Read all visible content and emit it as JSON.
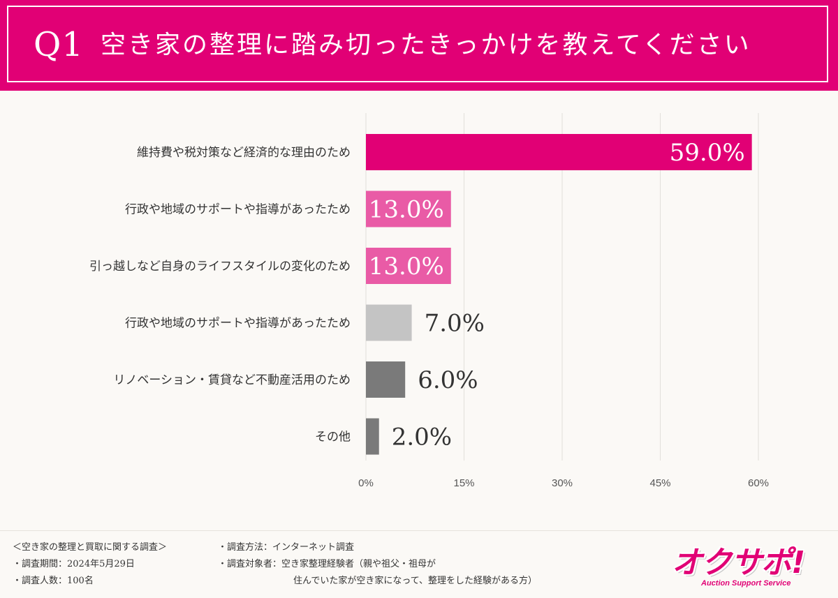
{
  "header": {
    "question_number": "Q1",
    "question_text": "空き家の整理に踏み切ったきっかけを教えてください"
  },
  "chart_data": {
    "type": "bar",
    "orientation": "horizontal",
    "title": "空き家の整理に踏み切ったきっかけを教えてください",
    "categories": [
      "維持費や税対策など経済的な理由のため",
      "行政や地域のサポートや指導があったため",
      "引っ越しなど自身のライフスタイルの変化のため",
      "行政や地域のサポートや指導があったため",
      "リノベーション・賃貸など不動産活用のため",
      "その他"
    ],
    "values": [
      59.0,
      13.0,
      13.0,
      7.0,
      6.0,
      2.0
    ],
    "value_labels": [
      "59.0%",
      "13.0%",
      "13.0%",
      "7.0%",
      "6.0%",
      "2.0%"
    ],
    "bar_colors": [
      "#e10075",
      "#e95ba6",
      "#e95ba6",
      "#c4c4c4",
      "#7a7a7a",
      "#7a7a7a"
    ],
    "xlim": [
      0,
      60
    ],
    "xticks": [
      0,
      15,
      30,
      45,
      60
    ],
    "xtick_labels": [
      "0%",
      "15%",
      "30%",
      "45%",
      "60%"
    ],
    "xlabel": "",
    "ylabel": "",
    "grid": true,
    "legend": "none"
  },
  "footer": {
    "survey_title": "＜空き家の整理と買取に関する調査＞",
    "period": "・調査期間：2024年5月29日",
    "respondents": "・調査人数：100名",
    "method": "・調査方法：インターネット調査",
    "target_line1": "・調査対象者：空き家整理経験者（親や祖父・祖母が",
    "target_line2": "住んでいた家が空き家になって、整理をした経験がある方）"
  },
  "logo": {
    "name": "オクサポ!",
    "tagline": "Auction Support Service"
  }
}
